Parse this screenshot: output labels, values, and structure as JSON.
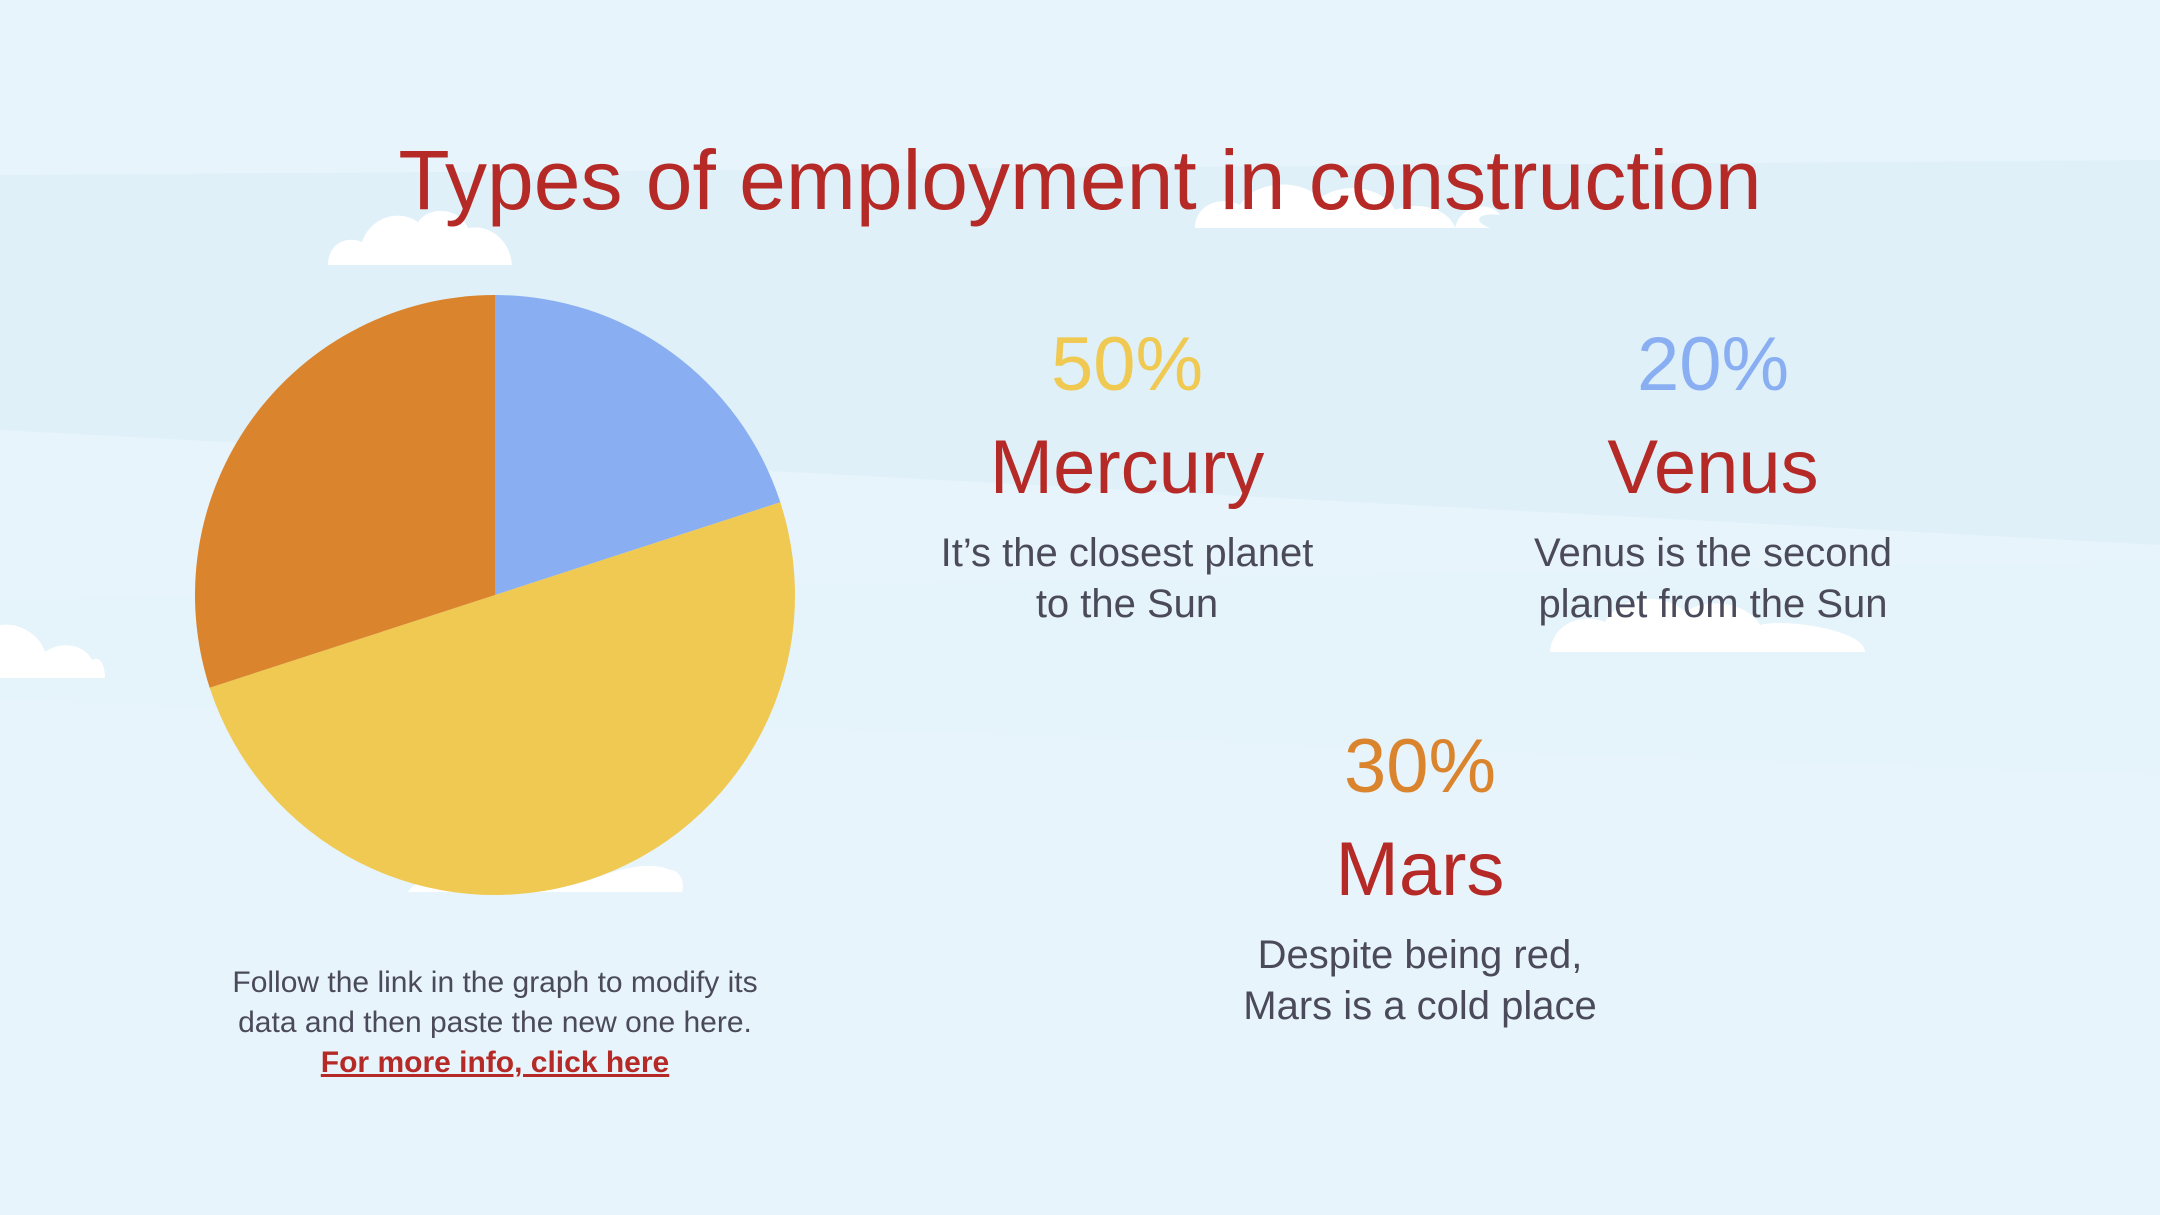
{
  "colors": {
    "background": "#e8f4fc",
    "band": "#dff0f9",
    "cloud": "#ffffff",
    "title": "#b52a26",
    "body_text": "#4a4a5a",
    "link": "#b52a26",
    "yellow": "#efc952",
    "blue": "#89aff2",
    "orange": "#db842e"
  },
  "slide": {
    "title": "Types of employment in construction",
    "note": {
      "line1": "Follow the link in the graph to modify its",
      "line2": "data and then paste the new one here.",
      "link": "For more info, click here"
    }
  },
  "stats": [
    {
      "percent": "50%",
      "name": "Mercury",
      "desc1": "It’s the closest planet",
      "desc2": "to the Sun",
      "color": "#efc952"
    },
    {
      "percent": "20%",
      "name": "Venus",
      "desc1": "Venus is the second",
      "desc2": "planet from the Sun",
      "color": "#89aff2"
    },
    {
      "percent": "30%",
      "name": "Mars",
      "desc1": "Despite being red,",
      "desc2": "Mars is a cold place",
      "color": "#db842e"
    }
  ],
  "chart_data": {
    "type": "pie",
    "categories": [
      "Venus",
      "Mercury",
      "Mars"
    ],
    "values": [
      20,
      50,
      30
    ],
    "colors": [
      "#89aff2",
      "#efc952",
      "#db842e"
    ],
    "start_angle_deg": 0,
    "direction": "clockwise",
    "legend": false
  }
}
